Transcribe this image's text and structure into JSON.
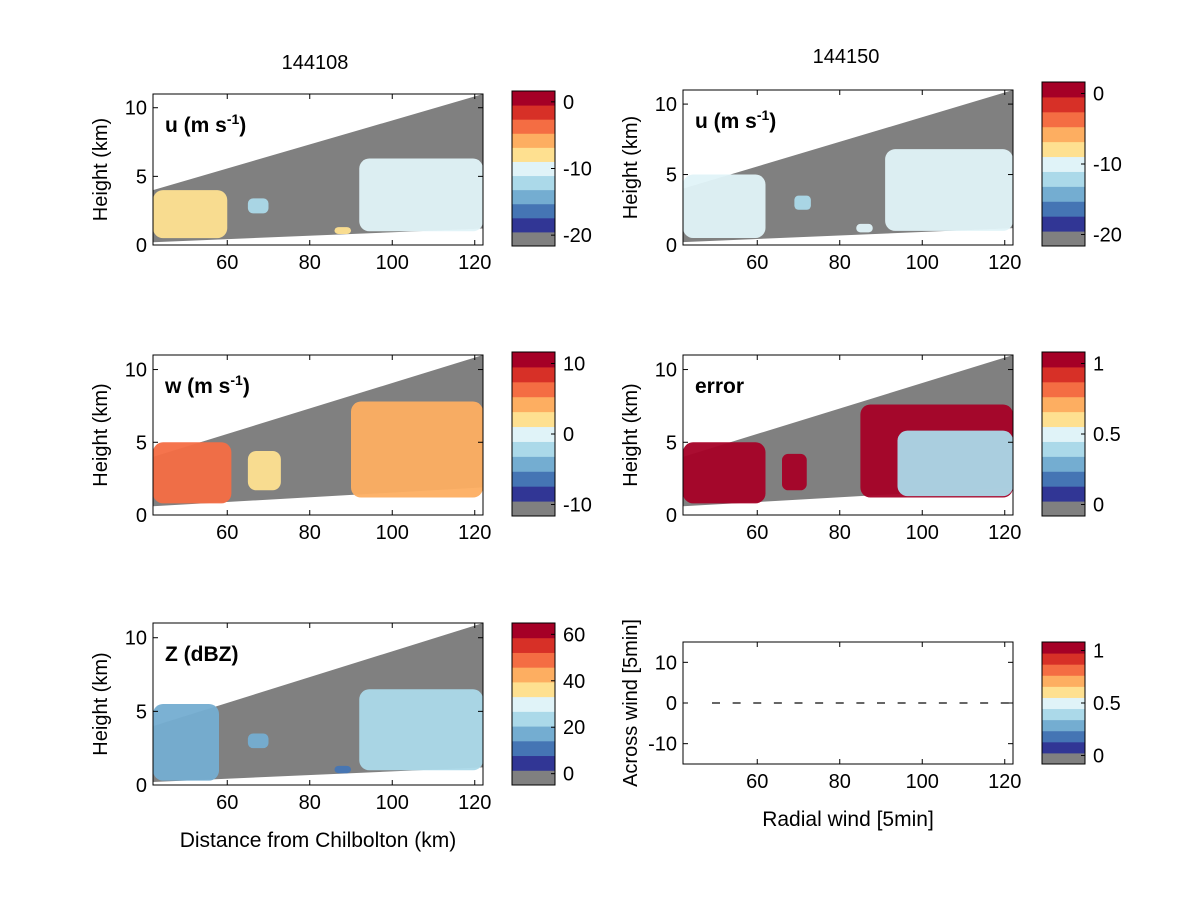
{
  "colors": {
    "gray": "#808080",
    "scale": [
      "#313695",
      "#4575b4",
      "#74add1",
      "#abd9e9",
      "#e0f3f8",
      "#fee090",
      "#fdae61",
      "#f46d43",
      "#d73027",
      "#a50026"
    ],
    "error_red": "#a50026",
    "error_mid": "#e0f3f8"
  },
  "panel_titles": [
    "144108",
    "144150"
  ],
  "chart_data": [
    {
      "id": "u-144108",
      "type": "heatmap",
      "title": "144108",
      "annotation": "u (m s-1)",
      "xlim": [
        42,
        122
      ],
      "ylim": [
        0,
        11
      ],
      "xticks": [
        "60",
        "80",
        "100",
        "120"
      ],
      "yticks": [
        "0",
        "5",
        "10"
      ],
      "ylabel": "Height (km)",
      "xlabel": "",
      "colorbar": {
        "ticks": [
          "0",
          "-10",
          "-20"
        ]
      },
      "scan_top": [
        [
          42,
          4.0
        ],
        [
          122,
          11.0
        ]
      ],
      "scan_bottom": [
        [
          42,
          0.2
        ],
        [
          122,
          1.2
        ]
      ],
      "regions": [
        {
          "x": [
            42,
            60
          ],
          "y": [
            0.5,
            4.0
          ],
          "level": 5
        },
        {
          "x": [
            65,
            70
          ],
          "y": [
            2.3,
            3.4
          ],
          "level": 3
        },
        {
          "x": [
            86,
            90
          ],
          "y": [
            0.8,
            1.3
          ],
          "level": 5
        },
        {
          "x": [
            92,
            122
          ],
          "y": [
            1.0,
            6.3
          ],
          "level": 4
        }
      ]
    },
    {
      "id": "u-144150",
      "type": "heatmap",
      "title": "144150",
      "annotation": "u (m s-1)",
      "xlim": [
        42,
        122
      ],
      "ylim": [
        0,
        11
      ],
      "xticks": [
        "60",
        "80",
        "100",
        "120"
      ],
      "yticks": [
        "0",
        "5",
        "10"
      ],
      "ylabel": "Height (km)",
      "xlabel": "",
      "colorbar": {
        "ticks": [
          "0",
          "-10",
          "-20"
        ]
      },
      "scan_top": [
        [
          42,
          4.0
        ],
        [
          122,
          11.0
        ]
      ],
      "scan_bottom": [
        [
          42,
          0.2
        ],
        [
          122,
          1.2
        ]
      ],
      "regions": [
        {
          "x": [
            42,
            62
          ],
          "y": [
            0.5,
            5.0
          ],
          "level": 4
        },
        {
          "x": [
            69,
            73
          ],
          "y": [
            2.5,
            3.5
          ],
          "level": 3
        },
        {
          "x": [
            84,
            88
          ],
          "y": [
            0.9,
            1.5
          ],
          "level": 4
        },
        {
          "x": [
            91,
            122
          ],
          "y": [
            1.0,
            6.8
          ],
          "level": 4
        }
      ]
    },
    {
      "id": "w-144108",
      "type": "heatmap",
      "annotation": "w (m s-1)",
      "xlim": [
        42,
        122
      ],
      "ylim": [
        0,
        11
      ],
      "xticks": [
        "60",
        "80",
        "100",
        "120"
      ],
      "yticks": [
        "0",
        "5",
        "10"
      ],
      "ylabel": "Height (km)",
      "xlabel": "",
      "colorbar": {
        "ticks": [
          "10",
          "0",
          "-10"
        ]
      },
      "scan_top": [
        [
          42,
          4.0
        ],
        [
          122,
          11.0
        ]
      ],
      "scan_bottom": [
        [
          42,
          0.6
        ],
        [
          122,
          1.9
        ]
      ],
      "regions": [
        {
          "x": [
            42,
            61
          ],
          "y": [
            0.8,
            5.0
          ],
          "level": 7
        },
        {
          "x": [
            65,
            73
          ],
          "y": [
            1.7,
            4.4
          ],
          "level": 5
        },
        {
          "x": [
            90,
            122
          ],
          "y": [
            1.2,
            7.8
          ],
          "level": 6
        }
      ]
    },
    {
      "id": "error-144150",
      "type": "heatmap",
      "annotation": "error",
      "xlim": [
        42,
        122
      ],
      "ylim": [
        0,
        11
      ],
      "xticks": [
        "60",
        "80",
        "100",
        "120"
      ],
      "yticks": [
        "0",
        "5",
        "10"
      ],
      "ylabel": "Height (km)",
      "xlabel": "",
      "colorbar": {
        "ticks": [
          "1",
          "0.5",
          "0"
        ]
      },
      "scan_top": [
        [
          42,
          4.0
        ],
        [
          122,
          11.0
        ]
      ],
      "scan_bottom": [
        [
          42,
          0.6
        ],
        [
          122,
          1.9
        ]
      ],
      "regions": [
        {
          "x": [
            42,
            62
          ],
          "y": [
            0.8,
            5.0
          ],
          "level": 9
        },
        {
          "x": [
            66,
            72
          ],
          "y": [
            1.7,
            4.2
          ],
          "level": 9
        },
        {
          "x": [
            85,
            122
          ],
          "y": [
            1.2,
            7.6
          ],
          "level": 9
        },
        {
          "x": [
            94,
            122
          ],
          "y": [
            1.3,
            5.8
          ],
          "level": 3
        }
      ]
    },
    {
      "id": "z-144108",
      "type": "heatmap",
      "annotation": "Z (dBZ)",
      "xlim": [
        42,
        122
      ],
      "ylim": [
        0,
        11
      ],
      "xticks": [
        "60",
        "80",
        "100",
        "120"
      ],
      "yticks": [
        "0",
        "5",
        "10"
      ],
      "ylabel": "Height (km)",
      "xlabel": "Distance from Chilbolton (km)",
      "colorbar": {
        "ticks": [
          "60",
          "40",
          "20",
          "0"
        ]
      },
      "scan_top": [
        [
          42,
          4.0
        ],
        [
          122,
          11.0
        ]
      ],
      "scan_bottom": [
        [
          42,
          0.2
        ],
        [
          122,
          1.2
        ]
      ],
      "regions": [
        {
          "x": [
            42,
            58
          ],
          "y": [
            0.3,
            5.5
          ],
          "level": 2
        },
        {
          "x": [
            65,
            70
          ],
          "y": [
            2.5,
            3.5
          ],
          "level": 2
        },
        {
          "x": [
            86,
            90
          ],
          "y": [
            0.8,
            1.3
          ],
          "level": 1
        },
        {
          "x": [
            92,
            122
          ],
          "y": [
            1.0,
            6.5
          ],
          "level": 3
        }
      ]
    },
    {
      "id": "wind-144150",
      "type": "scatter",
      "xlim": [
        42,
        122
      ],
      "ylim": [
        -15,
        15
      ],
      "xticks": [
        "60",
        "80",
        "100",
        "120"
      ],
      "yticks": [
        "10",
        "0",
        "-10"
      ],
      "ylabel": "Across wind [5min]",
      "xlabel": "Radial wind [5min]",
      "colorbar": {
        "ticks": [
          "1",
          "0.5",
          "0"
        ]
      },
      "x": [
        50,
        55,
        60,
        65,
        70,
        75,
        80,
        85,
        90,
        95,
        100,
        105,
        110,
        115,
        120
      ],
      "y": [
        0,
        0,
        0,
        0,
        0,
        0,
        0,
        0,
        0,
        0,
        0,
        0,
        0,
        0,
        0
      ]
    }
  ]
}
